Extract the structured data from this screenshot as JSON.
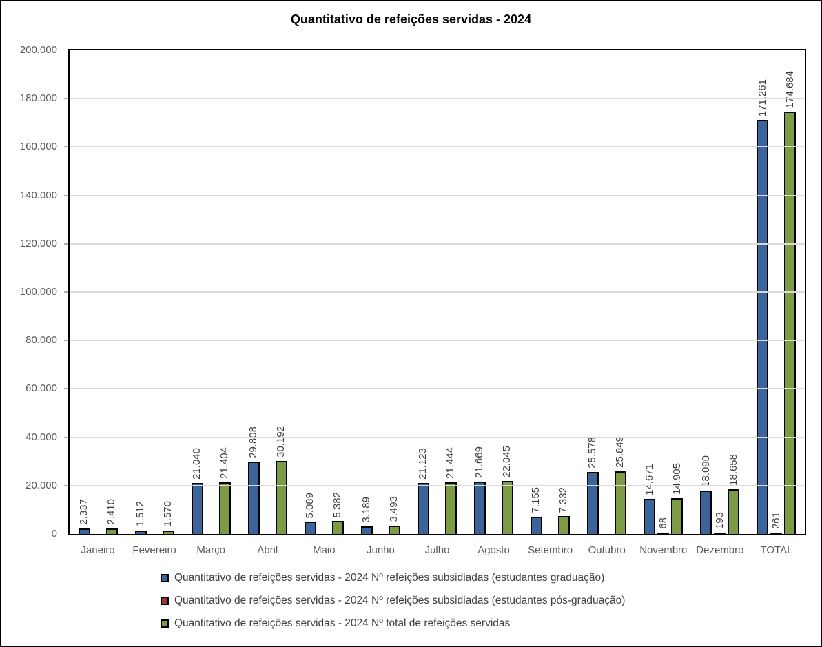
{
  "title": "Quantitativo de refeições servidas - 2024",
  "colors": {
    "series_graduacao": "#3B659A",
    "series_pos_graduacao": "#943735",
    "series_total": "#7D9A45",
    "gridline": "#DADADA",
    "axis_border": "#000000",
    "axis_tick_label": "#595959",
    "data_label": "#3F3F3F",
    "legend_text": "#404040"
  },
  "chart_data": {
    "type": "bar",
    "title": "Quantitativo de refeições servidas - 2024",
    "categories": [
      "Janeiro",
      "Fevereiro",
      "Março",
      "Abril",
      "Maio",
      "Junho",
      "Julho",
      "Agosto",
      "Setembro",
      "Outubro",
      "Novembro",
      "Dezembro",
      "TOTAL"
    ],
    "series": [
      {
        "name": "Quantitativo de refeições servidas - 2024 Nº refeições subsidiadas (estudantes graduação)",
        "color": "#3B659A",
        "values": [
          2337,
          1512,
          21040,
          29808,
          5089,
          3189,
          21123,
          21669,
          7155,
          25578,
          14671,
          18090,
          171261
        ],
        "labels": [
          "2.337",
          "1.512",
          "21.040",
          "29.808",
          "5.089",
          "3.189",
          "21.123",
          "21.669",
          "7.155",
          "25.578",
          "14.671",
          "18.090",
          "171.261"
        ]
      },
      {
        "name": "Quantitativo de refeições servidas - 2024 Nº refeições subsidiadas (estudantes pós-graduação)",
        "color": "#943735",
        "values": [
          null,
          null,
          null,
          null,
          null,
          null,
          null,
          null,
          null,
          null,
          68,
          193,
          261
        ],
        "labels": [
          null,
          null,
          null,
          null,
          null,
          null,
          null,
          null,
          null,
          null,
          "68",
          "193",
          "261"
        ]
      },
      {
        "name": "Quantitativo de refeições servidas - 2024 Nº total de refeições servidas",
        "color": "#7D9A45",
        "values": [
          2410,
          1570,
          21404,
          30192,
          5382,
          3493,
          21444,
          22045,
          7332,
          25849,
          14905,
          18658,
          174684
        ],
        "labels": [
          "2.410",
          "1.570",
          "21.404",
          "30.192",
          "5.382",
          "3.493",
          "21.444",
          "22.045",
          "7.332",
          "25.849",
          "14.905",
          "18.658",
          "174.684"
        ]
      }
    ],
    "ylim": [
      0,
      200000
    ],
    "ytick_step": 20000,
    "ytick_labels": [
      "0",
      "20.000",
      "40.000",
      "60.000",
      "80.000",
      "100.000",
      "120.000",
      "140.000",
      "160.000",
      "180.000",
      "200.000"
    ],
    "grid": true,
    "legend_position": "bottom"
  }
}
